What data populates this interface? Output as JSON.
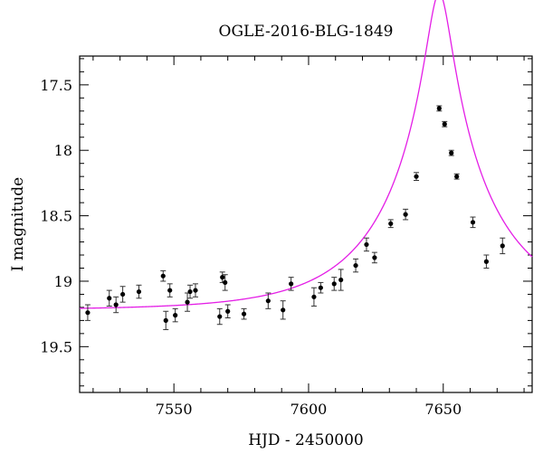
{
  "chart_data": {
    "type": "scatter",
    "title": "OGLE-2016-BLG-1849",
    "xlabel": "HJD - 2450000",
    "ylabel": "I magnitude",
    "xlim": [
      7515,
      7683
    ],
    "ylim": [
      19.85,
      17.28
    ],
    "y_inverted": true,
    "grid": false,
    "x_ticks": [
      7550,
      7600,
      7650
    ],
    "x_tick_labels": [
      "7550",
      "7600",
      "7650"
    ],
    "y_ticks": [
      17.5,
      18,
      18.5,
      19,
      19.5
    ],
    "y_tick_labels": [
      "17.5",
      "18",
      "18.5",
      "19",
      "19.5"
    ],
    "points": [
      {
        "x": 7518.0,
        "y": 19.24,
        "err": 0.06
      },
      {
        "x": 7526.0,
        "y": 19.13,
        "err": 0.06
      },
      {
        "x": 7528.5,
        "y": 19.18,
        "err": 0.06
      },
      {
        "x": 7531.0,
        "y": 19.1,
        "err": 0.06
      },
      {
        "x": 7537.0,
        "y": 19.08,
        "err": 0.05
      },
      {
        "x": 7546.0,
        "y": 18.96,
        "err": 0.04
      },
      {
        "x": 7547.0,
        "y": 19.3,
        "err": 0.07
      },
      {
        "x": 7548.5,
        "y": 19.07,
        "err": 0.05
      },
      {
        "x": 7550.5,
        "y": 19.26,
        "err": 0.05
      },
      {
        "x": 7555.0,
        "y": 19.16,
        "err": 0.07
      },
      {
        "x": 7556.0,
        "y": 19.08,
        "err": 0.05
      },
      {
        "x": 7558.0,
        "y": 19.07,
        "err": 0.05
      },
      {
        "x": 7567.0,
        "y": 19.27,
        "err": 0.06
      },
      {
        "x": 7568.0,
        "y": 18.97,
        "err": 0.04
      },
      {
        "x": 7569.0,
        "y": 19.01,
        "err": 0.06
      },
      {
        "x": 7570.0,
        "y": 19.23,
        "err": 0.05
      },
      {
        "x": 7576.0,
        "y": 19.25,
        "err": 0.04
      },
      {
        "x": 7585.0,
        "y": 19.15,
        "err": 0.06
      },
      {
        "x": 7590.5,
        "y": 19.22,
        "err": 0.07
      },
      {
        "x": 7593.5,
        "y": 19.02,
        "err": 0.05
      },
      {
        "x": 7602.0,
        "y": 19.12,
        "err": 0.07
      },
      {
        "x": 7604.5,
        "y": 19.05,
        "err": 0.04
      },
      {
        "x": 7609.5,
        "y": 19.02,
        "err": 0.05
      },
      {
        "x": 7612.0,
        "y": 18.99,
        "err": 0.08
      },
      {
        "x": 7617.5,
        "y": 18.88,
        "err": 0.05
      },
      {
        "x": 7621.5,
        "y": 18.72,
        "err": 0.05
      },
      {
        "x": 7624.5,
        "y": 18.82,
        "err": 0.04
      },
      {
        "x": 7630.5,
        "y": 18.56,
        "err": 0.03
      },
      {
        "x": 7636.0,
        "y": 18.49,
        "err": 0.04
      },
      {
        "x": 7640.0,
        "y": 18.2,
        "err": 0.03
      },
      {
        "x": 7648.5,
        "y": 17.68,
        "err": 0.02
      },
      {
        "x": 7650.5,
        "y": 17.8,
        "err": 0.02
      },
      {
        "x": 7653.0,
        "y": 18.02,
        "err": 0.02
      },
      {
        "x": 7655.0,
        "y": 18.2,
        "err": 0.02
      },
      {
        "x": 7661.0,
        "y": 18.55,
        "err": 0.04
      },
      {
        "x": 7666.0,
        "y": 18.85,
        "err": 0.05
      },
      {
        "x": 7672.0,
        "y": 18.73,
        "err": 0.06
      }
    ],
    "model": {
      "type": "point-lens microlensing fit",
      "color": "#e41ee6",
      "t0": 7648.5,
      "tE": 40,
      "u0": 0.108,
      "base_mag": 19.22
    },
    "colors": {
      "points": "#000000",
      "model": "#e41ee6",
      "axes": "#000000"
    }
  }
}
